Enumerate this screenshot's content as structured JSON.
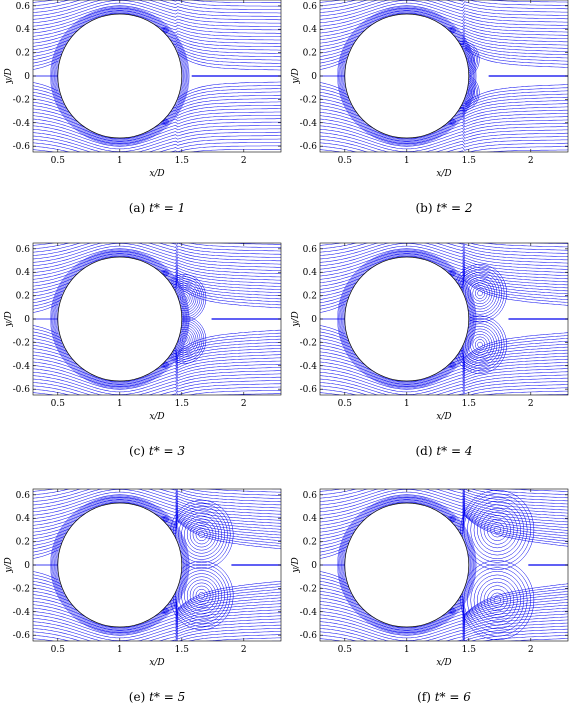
{
  "figure": {
    "panels": [
      {
        "caption_label": "(a)",
        "caption_eq": "t* = 1",
        "t_star": 1
      },
      {
        "caption_label": "(b)",
        "caption_eq": "t* = 2",
        "t_star": 2
      },
      {
        "caption_label": "(c)",
        "caption_eq": "t* = 3",
        "t_star": 3
      },
      {
        "caption_label": "(d)",
        "caption_eq": "t* = 4",
        "t_star": 4
      },
      {
        "caption_label": "(e)",
        "caption_eq": "t* = 5",
        "t_star": 5
      },
      {
        "caption_label": "(f)",
        "caption_eq": "t* = 6",
        "t_star": 6
      }
    ],
    "xlabel": "x/D",
    "ylabel": "y/D",
    "xlim": [
      0.3,
      2.3
    ],
    "ylim": [
      -0.65,
      0.65
    ],
    "xticks": [
      "0.5",
      "1",
      "1.5",
      "2"
    ],
    "xtick_values": [
      0.5,
      1,
      1.5,
      2
    ],
    "yticks": [
      "-0.6",
      "-0.4",
      "-0.2",
      "0",
      "0.2",
      "0.4",
      "0.6"
    ],
    "ytick_values": [
      -0.6,
      -0.4,
      -0.2,
      0,
      0.2,
      0.4,
      0.6
    ],
    "cylinder": {
      "center_x": 1,
      "center_y": 0,
      "radius": 0.5
    },
    "streamline_color": "#0000ee"
  }
}
